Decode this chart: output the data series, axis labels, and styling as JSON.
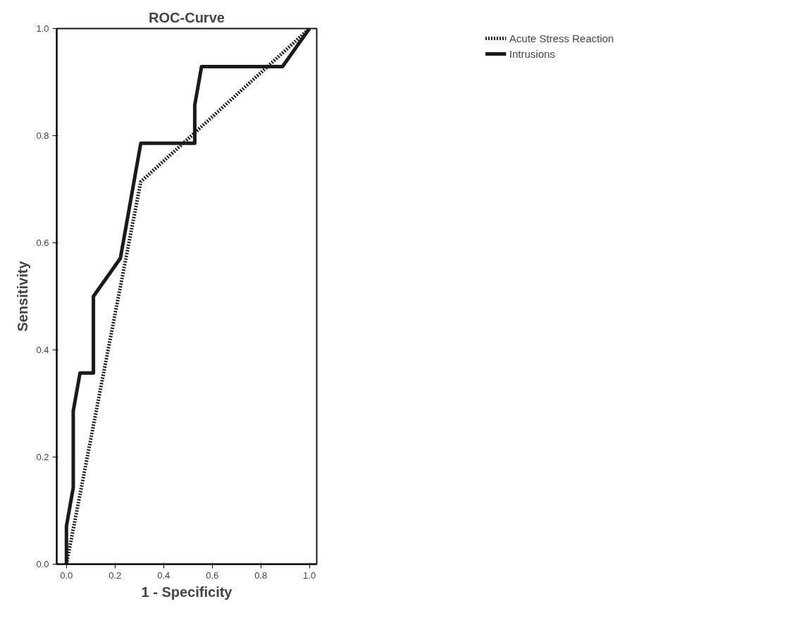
{
  "chart_data": {
    "type": "line",
    "title": "ROC-Curve",
    "xlabel": "1 - Specificity",
    "ylabel": "Sensitivity",
    "xlim": [
      -0.04,
      1.03
    ],
    "ylim": [
      0,
      1
    ],
    "xticks": [
      {
        "value": 0,
        "label": "0.0"
      },
      {
        "value": 0.2,
        "label": "0.2"
      },
      {
        "value": 0.4,
        "label": "0.4"
      },
      {
        "value": 0.6,
        "label": "0.6"
      },
      {
        "value": 0.8,
        "label": "0.8"
      },
      {
        "value": 1,
        "label": "1.0"
      }
    ],
    "yticks": [
      {
        "value": 0,
        "label": "0.0"
      },
      {
        "value": 0.2,
        "label": "0.2"
      },
      {
        "value": 0.4,
        "label": "0.4"
      },
      {
        "value": 0.6,
        "label": "0.6"
      },
      {
        "value": 0.8,
        "label": "0.8"
      },
      {
        "value": 1,
        "label": "1.0"
      }
    ],
    "grid": false,
    "legend": "top right",
    "marker": "none",
    "series": [
      {
        "name": "Acute Stress Reaction",
        "color": "#1a1a1a",
        "line_style": "dotted",
        "x": [
          0,
          0.306,
          1
        ],
        "values": [
          0,
          0.714,
          1
        ]
      },
      {
        "name": "Intrusions",
        "color": "#1a1a1a",
        "line_style": "solid",
        "x": [
          0,
          0,
          0.028,
          0.028,
          0.056,
          0.111,
          0.111,
          0.222,
          0.306,
          0.528,
          0.528,
          0.556,
          0.889,
          1
        ],
        "values": [
          0,
          0.071,
          0.143,
          0.286,
          0.357,
          0.357,
          0.5,
          0.571,
          0.786,
          0.786,
          0.857,
          0.929,
          0.929,
          1
        ]
      }
    ]
  }
}
